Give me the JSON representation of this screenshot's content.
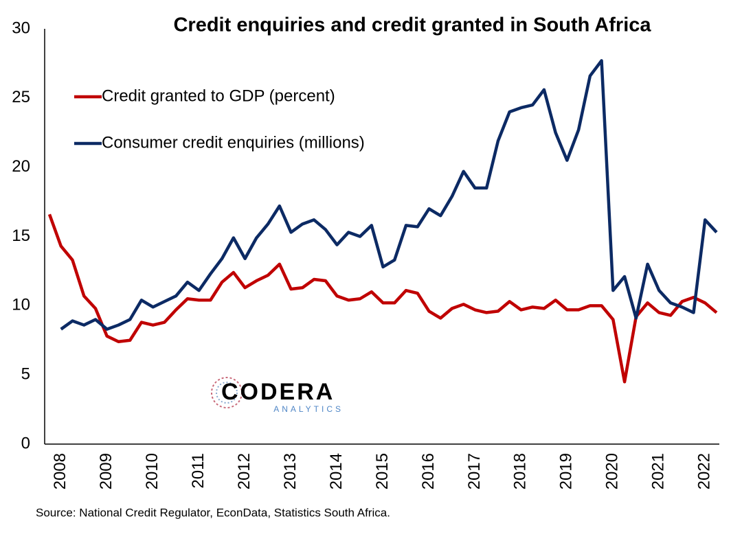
{
  "chart_data": {
    "type": "line",
    "title": "Credit enquiries and credit granted in South Africa",
    "source": "Source: National Credit Regulator, EconData, Statistics South Africa.",
    "logo": {
      "name": "CODERA",
      "tagline": "ANALYTICS"
    },
    "categories": [
      null,
      "2008",
      null,
      null,
      null,
      "2009",
      null,
      null,
      null,
      "2010",
      null,
      null,
      null,
      "2011",
      null,
      null,
      null,
      "2012",
      null,
      null,
      null,
      "2013",
      null,
      null,
      null,
      "2014",
      null,
      null,
      null,
      "2015",
      null,
      null,
      null,
      "2016",
      null,
      null,
      null,
      "2017",
      null,
      null,
      null,
      "2018",
      null,
      null,
      null,
      "2019",
      null,
      null,
      null,
      "2020",
      null,
      null,
      null,
      "2021",
      null,
      null,
      null,
      "2022",
      null
    ],
    "series": [
      {
        "name": "Credit granted to GDP (percent)",
        "color": "#c00000",
        "values": [
          16.6,
          14.3,
          13.3,
          10.7,
          9.8,
          7.8,
          7.4,
          7.5,
          8.8,
          8.6,
          8.8,
          9.7,
          10.5,
          10.4,
          10.4,
          11.7,
          12.4,
          11.3,
          11.8,
          12.2,
          13.0,
          11.2,
          11.3,
          11.9,
          11.8,
          10.7,
          10.4,
          10.5,
          11.0,
          10.2,
          10.2,
          11.1,
          10.9,
          9.6,
          9.1,
          9.8,
          10.1,
          9.7,
          9.5,
          9.6,
          10.3,
          9.7,
          9.9,
          9.8,
          10.4,
          9.7,
          9.7,
          10.0,
          10.0,
          9.0,
          4.5,
          9.2,
          10.2,
          9.5,
          9.3,
          10.3,
          10.6,
          10.2,
          9.5
        ]
      },
      {
        "name": "Consumer credit enquiries (millions)",
        "color": "#0c2a64",
        "values": [
          null,
          8.3,
          8.9,
          8.6,
          9.0,
          8.3,
          8.6,
          9.0,
          10.4,
          9.9,
          10.3,
          10.7,
          11.7,
          11.1,
          12.3,
          13.4,
          14.9,
          13.4,
          14.9,
          15.9,
          17.2,
          15.3,
          15.9,
          16.2,
          15.5,
          14.4,
          15.3,
          15.0,
          15.8,
          12.8,
          13.3,
          15.8,
          15.7,
          17.0,
          16.5,
          17.9,
          19.7,
          18.5,
          18.5,
          21.9,
          24.0,
          24.3,
          24.5,
          25.6,
          22.5,
          20.5,
          22.7,
          26.6,
          27.7,
          11.1,
          12.1,
          9.1,
          13.0,
          11.1,
          10.2,
          9.9,
          9.5,
          16.2,
          15.3
        ]
      }
    ],
    "ylim": [
      0,
      30
    ],
    "yticks": [
      0,
      5,
      10,
      15,
      20,
      25,
      30
    ],
    "grid": false,
    "legend": "upper left"
  }
}
